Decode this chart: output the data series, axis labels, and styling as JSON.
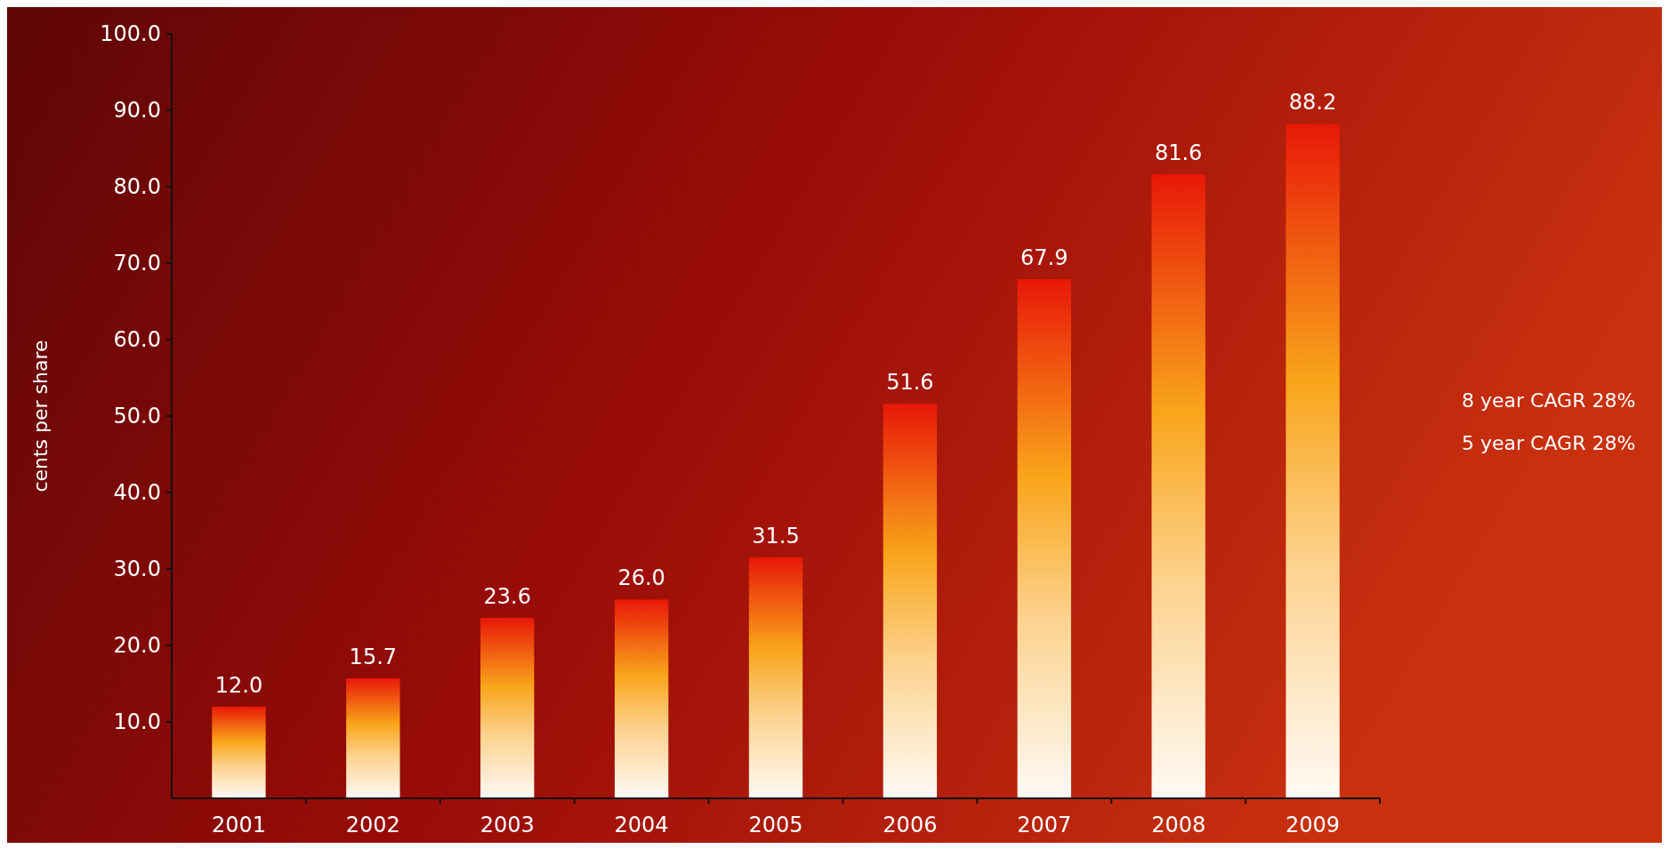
{
  "chart_data": {
    "type": "bar",
    "ylabel": "cents per share",
    "categories": [
      "2001",
      "2002",
      "2003",
      "2004",
      "2005",
      "2006",
      "2007",
      "2008",
      "2009"
    ],
    "values": [
      12.0,
      15.7,
      23.6,
      26.0,
      31.5,
      51.6,
      67.9,
      81.6,
      88.2
    ],
    "value_labels": [
      "12.0",
      "15.7",
      "23.6",
      "26.0",
      "31.5",
      "51.6",
      "67.9",
      "81.6",
      "88.2"
    ],
    "color": "#f9a51a",
    "ylim": [
      0,
      100
    ],
    "yticks": [
      {
        "value": 10,
        "label": "10.0"
      },
      {
        "value": 20,
        "label": "20.0"
      },
      {
        "value": 30,
        "label": "30.0"
      },
      {
        "value": 40,
        "label": "40.0"
      },
      {
        "value": 50,
        "label": "50.0"
      },
      {
        "value": 60,
        "label": "60.0"
      },
      {
        "value": 70,
        "label": "70.0"
      },
      {
        "value": 80,
        "label": "80.0"
      },
      {
        "value": 90,
        "label": "90.0"
      },
      {
        "value": 100,
        "label": "100.0"
      }
    ],
    "grid": false,
    "annotations": [
      "8 year CAGR 28%",
      "5 year CAGR 28%"
    ]
  }
}
